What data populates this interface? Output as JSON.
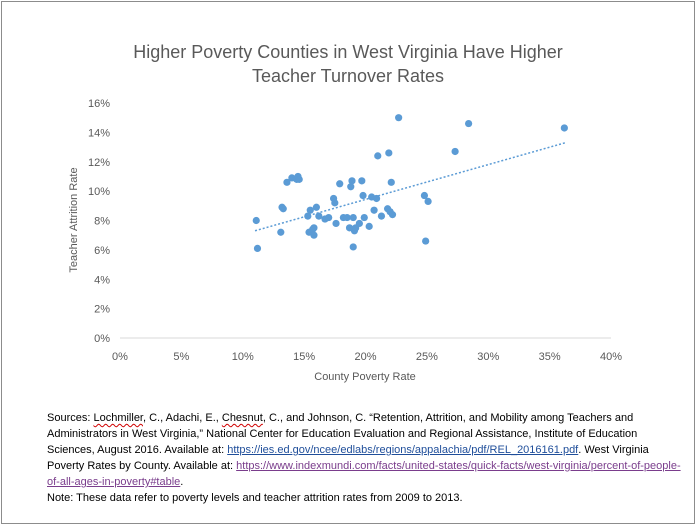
{
  "chart_data": {
    "type": "scatter",
    "title_lines": [
      "Higher Poverty Counties in West Virginia Have Higher",
      "Teacher Turnover Rates"
    ],
    "xlabel": "County Poverty Rate",
    "ylabel": "Teacher Attrition Rate",
    "xlim": [
      0,
      0.4
    ],
    "ylim": [
      0,
      0.16
    ],
    "x_ticks": [
      "0%",
      "5%",
      "10%",
      "15%",
      "20%",
      "25%",
      "30%",
      "35%",
      "40%"
    ],
    "y_ticks": [
      "0%",
      "2%",
      "4%",
      "6%",
      "8%",
      "10%",
      "12%",
      "14%",
      "16%"
    ],
    "grid": false,
    "legend": "none",
    "trendline": {
      "type": "linear",
      "x_start": 0.11,
      "y_start": 0.073,
      "x_end": 0.363,
      "y_end": 0.133
    },
    "marker_color": "#5b9bd5",
    "trendline_color": "#5b9bd5",
    "points": [
      {
        "x": 0.111,
        "y": 0.08
      },
      {
        "x": 0.112,
        "y": 0.061
      },
      {
        "x": 0.131,
        "y": 0.072
      },
      {
        "x": 0.132,
        "y": 0.089
      },
      {
        "x": 0.133,
        "y": 0.088
      },
      {
        "x": 0.136,
        "y": 0.106
      },
      {
        "x": 0.14,
        "y": 0.109
      },
      {
        "x": 0.144,
        "y": 0.108
      },
      {
        "x": 0.145,
        "y": 0.11
      },
      {
        "x": 0.146,
        "y": 0.108
      },
      {
        "x": 0.153,
        "y": 0.083
      },
      {
        "x": 0.154,
        "y": 0.072
      },
      {
        "x": 0.155,
        "y": 0.087
      },
      {
        "x": 0.157,
        "y": 0.074
      },
      {
        "x": 0.158,
        "y": 0.075
      },
      {
        "x": 0.158,
        "y": 0.07
      },
      {
        "x": 0.16,
        "y": 0.089
      },
      {
        "x": 0.162,
        "y": 0.083
      },
      {
        "x": 0.167,
        "y": 0.081
      },
      {
        "x": 0.17,
        "y": 0.082
      },
      {
        "x": 0.174,
        "y": 0.095
      },
      {
        "x": 0.175,
        "y": 0.092
      },
      {
        "x": 0.176,
        "y": 0.078
      },
      {
        "x": 0.179,
        "y": 0.105
      },
      {
        "x": 0.182,
        "y": 0.082
      },
      {
        "x": 0.185,
        "y": 0.082
      },
      {
        "x": 0.187,
        "y": 0.075
      },
      {
        "x": 0.188,
        "y": 0.103
      },
      {
        "x": 0.189,
        "y": 0.107
      },
      {
        "x": 0.19,
        "y": 0.062
      },
      {
        "x": 0.19,
        "y": 0.082
      },
      {
        "x": 0.191,
        "y": 0.073
      },
      {
        "x": 0.192,
        "y": 0.075
      },
      {
        "x": 0.195,
        "y": 0.078
      },
      {
        "x": 0.197,
        "y": 0.107
      },
      {
        "x": 0.198,
        "y": 0.097
      },
      {
        "x": 0.199,
        "y": 0.082
      },
      {
        "x": 0.203,
        "y": 0.076
      },
      {
        "x": 0.205,
        "y": 0.096
      },
      {
        "x": 0.207,
        "y": 0.087
      },
      {
        "x": 0.209,
        "y": 0.095
      },
      {
        "x": 0.21,
        "y": 0.124
      },
      {
        "x": 0.213,
        "y": 0.083
      },
      {
        "x": 0.218,
        "y": 0.088
      },
      {
        "x": 0.219,
        "y": 0.126
      },
      {
        "x": 0.22,
        "y": 0.086
      },
      {
        "x": 0.221,
        "y": 0.106
      },
      {
        "x": 0.222,
        "y": 0.084
      },
      {
        "x": 0.227,
        "y": 0.15
      },
      {
        "x": 0.248,
        "y": 0.097
      },
      {
        "x": 0.249,
        "y": 0.066
      },
      {
        "x": 0.251,
        "y": 0.093
      },
      {
        "x": 0.273,
        "y": 0.127
      },
      {
        "x": 0.284,
        "y": 0.146
      },
      {
        "x": 0.362,
        "y": 0.143
      }
    ]
  },
  "sources": {
    "p1_a": "Sources: ",
    "p1_lochmiller": "Lochmiller",
    "p1_b": ", C., Adachi, E., ",
    "p1_chesnut": "Chesnut",
    "p1_c": ", C., and Johnson, C. “Retention, Attrition, and Mobility among Teachers and Administrators in West Virginia,” National Center for Education Evaluation and Regional Assistance, Institute of Education Sciences, August 2016. Available at: ",
    "p1_link1": "https://ies.ed.gov/ncee/edlabs/regions/appalachia/pdf/REL_2016161.pdf",
    "p1_d": ". West Virginia Poverty Rates by County. Available at:  ",
    "p1_link2": "https://www.indexmundi.com/facts/united-states/quick-facts/west-virginia/percent-of-people-of-all-ages-in-poverty#table",
    "p1_e": ".",
    "note": "Note: These data refer to poverty levels and teacher attrition rates from 2009 to 2013."
  }
}
